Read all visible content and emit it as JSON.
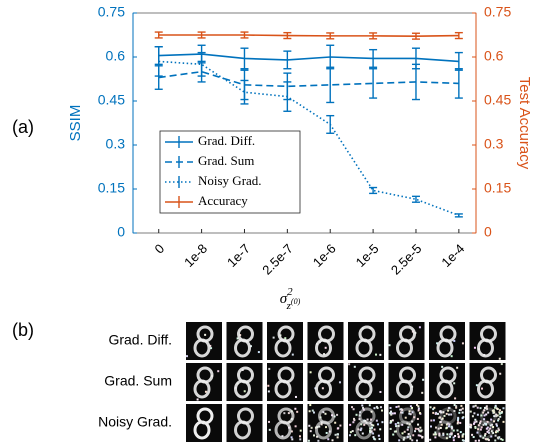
{
  "chart_data": {
    "type": "errorbar-line",
    "categories": [
      "0",
      "1e-8",
      "1e-7",
      "2.5e-7",
      "1e-6",
      "1e-5",
      "2.5e-5",
      "1e-4"
    ],
    "xlabel": {
      "base": "σ",
      "sup": "2",
      "sub": "z",
      "subsup": "(0)"
    },
    "ylabel": "SSIM",
    "y2label": "Test Accuracy",
    "ylim": [
      0,
      0.75
    ],
    "yticks": [
      0,
      0.15,
      0.3,
      0.45,
      0.6,
      0.75
    ],
    "y2lim": [
      0,
      0.75
    ],
    "y2ticks": [
      0,
      0.15,
      0.3,
      0.45,
      0.6,
      0.75
    ],
    "ycolor": "#0072bd",
    "y2color": "#d95319",
    "legend": "center left",
    "series": [
      {
        "name": "Grad. Diff.",
        "color": "#0072bd",
        "style": "solid",
        "values": [
          0.605,
          0.61,
          0.595,
          0.59,
          0.6,
          0.595,
          0.595,
          0.585
        ],
        "errors": [
          0.03,
          0.03,
          0.035,
          0.03,
          0.04,
          0.03,
          0.035,
          0.03
        ]
      },
      {
        "name": "Grad. Sum",
        "color": "#0072bd",
        "style": "dashed",
        "values": [
          0.53,
          0.55,
          0.505,
          0.5,
          0.505,
          0.51,
          0.515,
          0.51
        ],
        "errors": [
          0.04,
          0.035,
          0.05,
          0.045,
          0.06,
          0.05,
          0.06,
          0.05
        ]
      },
      {
        "name": "Noisy Grad.",
        "color": "#0072bd",
        "style": "dotted",
        "values": [
          0.585,
          0.575,
          0.48,
          0.465,
          0.37,
          0.145,
          0.115,
          0.06
        ],
        "errors": [
          0.05,
          0.04,
          0.04,
          0.05,
          0.03,
          0.01,
          0.01,
          0.005
        ]
      },
      {
        "name": "Accuracy",
        "color": "#d95319",
        "style": "solid",
        "axis": "y2",
        "values": [
          0.675,
          0.675,
          0.675,
          0.673,
          0.672,
          0.672,
          0.671,
          0.673
        ],
        "errors": [
          0.01,
          0.01,
          0.01,
          0.01,
          0.01,
          0.01,
          0.01,
          0.01
        ]
      }
    ]
  },
  "panel_labels": [
    "(a)",
    "(b)"
  ],
  "image_grid": {
    "rows": [
      "Grad. Diff.",
      "Grad. Sum",
      "Noisy Grad."
    ]
  }
}
